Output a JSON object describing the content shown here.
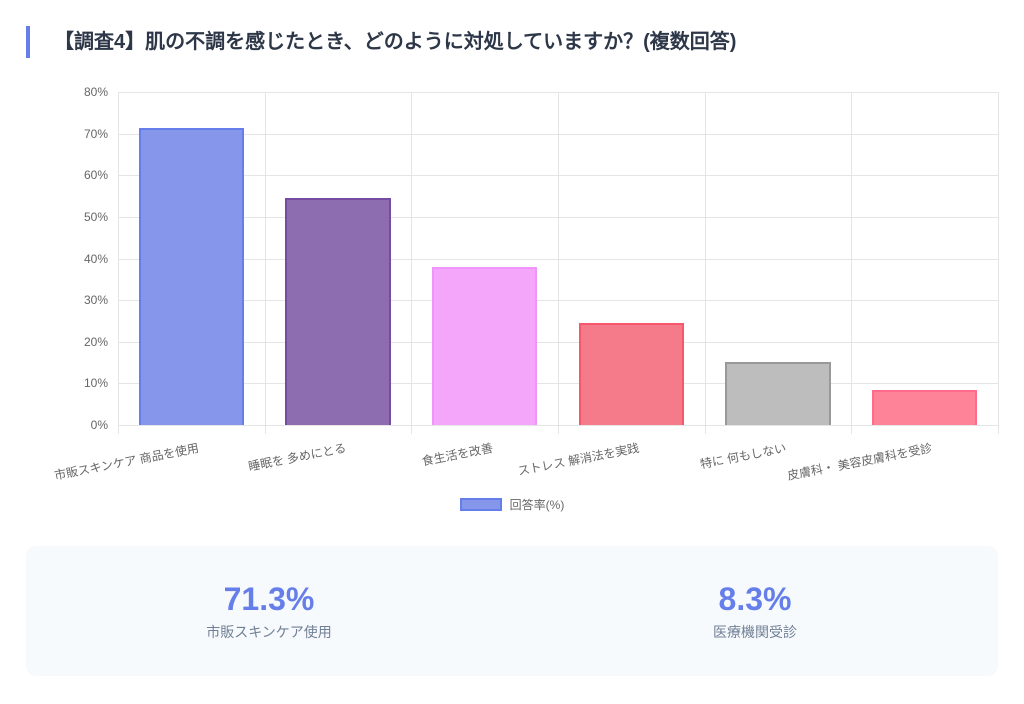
{
  "header": {
    "title": "【調査4】肌の不調を感じたとき、どのように対処していますか？(複数回答)"
  },
  "chart_data": {
    "type": "bar",
    "title": "【調査4】肌の不調を感じたとき、どのように対処していますか？(複数回答)",
    "categories": [
      "市販スキンケア 商品を使用",
      "睡眠を 多めにとる",
      "食生活を改善",
      "ストレス 解消法を実践",
      "特に 何もしない",
      "皮膚科・ 美容皮膚科を受診"
    ],
    "series": [
      {
        "name": "回答率(%)",
        "values": [
          71.3,
          54.6,
          38.0,
          24.5,
          15.1,
          8.3
        ]
      }
    ],
    "colors": [
      "#8596eb",
      "#8e6cb0",
      "#f4a6fb",
      "#f67b8a",
      "#bdbdbd",
      "#ff8398"
    ],
    "border_colors": [
      "#667eea",
      "#764ba2",
      "#f093fb",
      "#f5576c",
      "#999999",
      "#ff6b8a"
    ],
    "xlabel": "",
    "ylabel": "",
    "ylim": [
      0,
      80
    ],
    "yticks": [
      "0%",
      "10%",
      "20%",
      "30%",
      "40%",
      "50%",
      "60%",
      "70%",
      "80%"
    ],
    "grid": true,
    "legend_position": "bottom"
  },
  "legend": {
    "label": "回答率(%)"
  },
  "stats": [
    {
      "value": "71.3%",
      "label": "市販スキンケア使用"
    },
    {
      "value": "8.3%",
      "label": "医療機関受診"
    }
  ]
}
